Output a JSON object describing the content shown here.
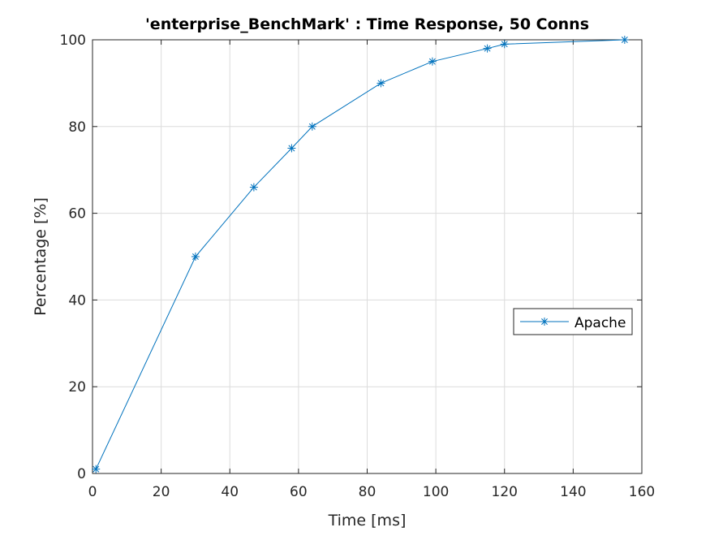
{
  "chart_data": {
    "type": "line",
    "title": "'enterprise_BenchMark' : Time Response, 50 Conns",
    "xlabel": "Time [ms]",
    "ylabel": "Percentage [%]",
    "xlim": [
      0,
      160
    ],
    "ylim": [
      0,
      100
    ],
    "xticks": [
      0,
      20,
      40,
      60,
      80,
      100,
      120,
      140,
      160
    ],
    "yticks": [
      0,
      20,
      40,
      60,
      80,
      100
    ],
    "grid": true,
    "legend_position": "right",
    "series": [
      {
        "name": "Apache",
        "color": "#0072BD",
        "marker": "asterisk",
        "x": [
          1,
          30,
          47,
          58,
          64,
          84,
          99,
          115,
          120,
          155
        ],
        "y": [
          1,
          50,
          66,
          75,
          80,
          90,
          95,
          98,
          99,
          100
        ]
      }
    ]
  }
}
